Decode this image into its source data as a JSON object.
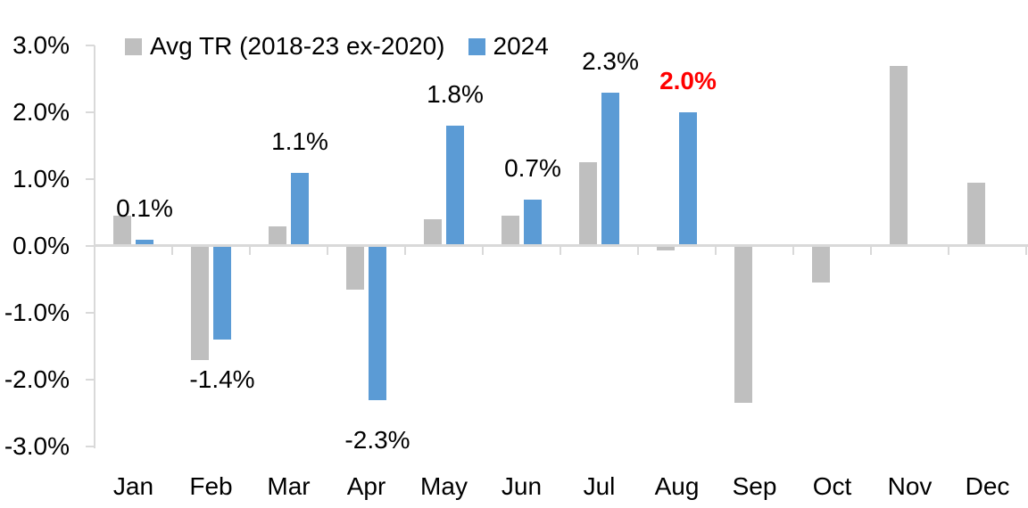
{
  "chart_data": {
    "type": "bar",
    "title": "",
    "xlabel": "",
    "ylabel": "",
    "grid": false,
    "categories": [
      "Jan",
      "Feb",
      "Mar",
      "Apr",
      "May",
      "Jun",
      "Jul",
      "Aug",
      "Sep",
      "Oct",
      "Nov",
      "Dec"
    ],
    "series": [
      {
        "name": "Avg TR (2018-23 ex-2020)",
        "color": "#bfbfbf",
        "values": [
          0.45,
          -1.7,
          0.3,
          -0.65,
          0.4,
          0.45,
          1.25,
          -0.07,
          -2.35,
          -0.55,
          2.7,
          0.95
        ]
      },
      {
        "name": "2024",
        "color": "#5b9bd5",
        "values": [
          0.1,
          -1.4,
          1.1,
          -2.3,
          1.8,
          0.7,
          2.3,
          2.0,
          null,
          null,
          null,
          null
        ]
      }
    ],
    "data_labels": [
      {
        "category": "Jan",
        "text": "0.1%",
        "color": "#000000",
        "bold": false
      },
      {
        "category": "Feb",
        "text": "-1.4%",
        "color": "#000000",
        "bold": false
      },
      {
        "category": "Mar",
        "text": "1.1%",
        "color": "#000000",
        "bold": false
      },
      {
        "category": "Apr",
        "text": "-2.3%",
        "color": "#000000",
        "bold": false
      },
      {
        "category": "May",
        "text": "1.8%",
        "color": "#000000",
        "bold": false
      },
      {
        "category": "Jun",
        "text": "0.7%",
        "color": "#000000",
        "bold": false
      },
      {
        "category": "Jul",
        "text": "2.3%",
        "color": "#000000",
        "bold": false
      },
      {
        "category": "Aug",
        "text": "2.0%",
        "color": "#ff0000",
        "bold": true
      }
    ],
    "yaxis": {
      "tick_labels": [
        "3.0%",
        "2.0%",
        "1.0%",
        "0.0%",
        "-1.0%",
        "-2.0%",
        "-3.0%"
      ],
      "tick_values": [
        3,
        2,
        1,
        0,
        -1,
        -2,
        -3
      ],
      "min": -3.0,
      "max": 3.0
    },
    "legend": {
      "position": "top"
    },
    "colors": {
      "axis": "#d9d9d9",
      "text": "#000000",
      "highlight": "#ff0000",
      "background": "#ffffff"
    }
  }
}
